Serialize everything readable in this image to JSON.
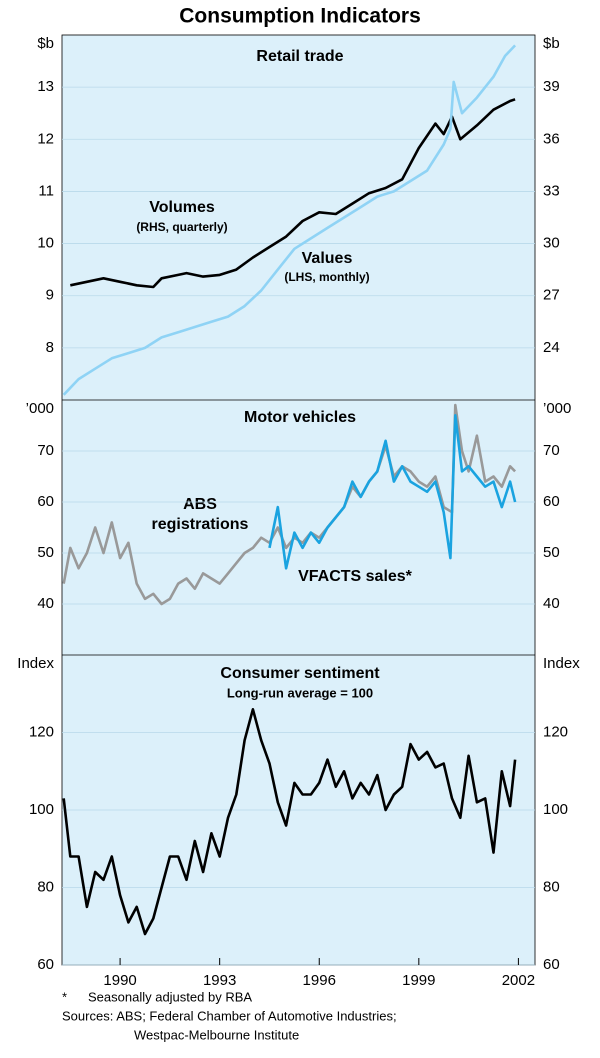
{
  "title": "Consumption Indicators",
  "notes": [
    "*",
    "Seasonally adjusted by RBA",
    "Sources: ABS; Federal Chamber of Automotive Industries;",
    "Westpac-Melbourne Institute"
  ],
  "chart_data": [
    {
      "type": "line",
      "title": "Retail trade",
      "y_unit": "$b",
      "y2_unit": "$b",
      "xlim": [
        1988.25,
        2002.5
      ],
      "ylim": [
        7,
        14
      ],
      "yticks": [
        8,
        9,
        10,
        11,
        12,
        13
      ],
      "y2lim": [
        21,
        42
      ],
      "y2ticks": [
        24,
        27,
        30,
        33,
        36,
        39
      ],
      "grid": true,
      "annotations": [
        "(RHS, quarterly)",
        "(LHS, monthly)"
      ],
      "series": [
        {
          "name": "Volumes",
          "color": "#000000",
          "axis": "y2",
          "x": [
            1988.5,
            1989,
            1989.5,
            1990,
            1990.5,
            1991,
            1991.25,
            1991.75,
            1992,
            1992.5,
            1993,
            1993.5,
            1994,
            1994.5,
            1995,
            1995.5,
            1996,
            1996.5,
            1997,
            1997.5,
            1998,
            1998.5,
            1999,
            1999.5,
            1999.75,
            2000,
            2000.25,
            2000.75,
            2001.25,
            2001.75,
            2001.9
          ],
          "values": [
            27.6,
            27.8,
            28.0,
            27.8,
            27.6,
            27.5,
            28.0,
            28.2,
            28.3,
            28.1,
            28.2,
            28.5,
            29.2,
            29.8,
            30.4,
            31.3,
            31.8,
            31.7,
            32.3,
            32.9,
            33.2,
            33.7,
            35.5,
            36.9,
            36.3,
            37.3,
            36.0,
            36.8,
            37.7,
            38.2,
            38.3
          ]
        },
        {
          "name": "Values",
          "color": "#8fd3f5",
          "axis": "y",
          "x": [
            1988.3,
            1988.75,
            1989.25,
            1989.75,
            1990.25,
            1990.75,
            1991.25,
            1991.75,
            1992.25,
            1992.75,
            1993.25,
            1993.75,
            1994.25,
            1994.75,
            1995.25,
            1995.75,
            1996.25,
            1996.75,
            1997.25,
            1997.75,
            1998.25,
            1998.75,
            1999.25,
            1999.75,
            1999.95,
            2000.05,
            2000.3,
            2000.75,
            2001.25,
            2001.6,
            2001.9
          ],
          "values": [
            7.1,
            7.4,
            7.6,
            7.8,
            7.9,
            8.0,
            8.2,
            8.3,
            8.4,
            8.5,
            8.6,
            8.8,
            9.1,
            9.5,
            9.9,
            10.1,
            10.3,
            10.5,
            10.7,
            10.9,
            11.0,
            11.2,
            11.4,
            11.9,
            12.2,
            13.1,
            12.5,
            12.8,
            13.2,
            13.6,
            13.8
          ]
        }
      ]
    },
    {
      "type": "line",
      "title": "Motor vehicles",
      "y_unit": "’000",
      "y2_unit": "’000",
      "xlim": [
        1988.25,
        2002.5
      ],
      "ylim": [
        30,
        80
      ],
      "yticks": [
        40,
        50,
        60,
        70
      ],
      "y2lim": [
        30,
        80
      ],
      "y2ticks": [
        40,
        50,
        60,
        70
      ],
      "grid": true,
      "series": [
        {
          "name": "ABS registrations",
          "color": "#999999",
          "axis": "y",
          "x": [
            1988.3,
            1988.5,
            1988.75,
            1989,
            1989.25,
            1989.5,
            1989.75,
            1990,
            1990.25,
            1990.5,
            1990.75,
            1991,
            1991.25,
            1991.5,
            1991.75,
            1992,
            1992.25,
            1992.5,
            1992.75,
            1993,
            1993.25,
            1993.5,
            1993.75,
            1994,
            1994.25,
            1994.5,
            1994.75,
            1995,
            1995.25,
            1995.5,
            1995.75,
            1996,
            1996.25,
            1996.5,
            1996.75,
            1997,
            1997.25,
            1997.5,
            1997.75,
            1998,
            1998.25,
            1998.5,
            1998.75,
            1999,
            1999.25,
            1999.5,
            1999.75,
            2000,
            2000.1,
            2000.3,
            2000.5,
            2000.75,
            2001,
            2001.25,
            2001.5,
            2001.75,
            2001.9
          ],
          "values": [
            44,
            51,
            47,
            50,
            55,
            50,
            56,
            49,
            52,
            44,
            41,
            42,
            40,
            41,
            44,
            45,
            43,
            46,
            45,
            44,
            46,
            48,
            50,
            51,
            53,
            52,
            55,
            51,
            53,
            52,
            54,
            53,
            55,
            57,
            59,
            63,
            61,
            64,
            66,
            71,
            65,
            67,
            66,
            64,
            63,
            65,
            59,
            58,
            79,
            70,
            66,
            73,
            64,
            65,
            63,
            67,
            66
          ]
        },
        {
          "name": "VFACTS sales*",
          "color": "#1aa3e0",
          "axis": "y",
          "x": [
            1994.5,
            1994.75,
            1995,
            1995.25,
            1995.5,
            1995.75,
            1996,
            1996.25,
            1996.5,
            1996.75,
            1997,
            1997.25,
            1997.5,
            1997.75,
            1998,
            1998.25,
            1998.5,
            1998.75,
            1999,
            1999.25,
            1999.5,
            1999.75,
            1999.95,
            2000.1,
            2000.3,
            2000.5,
            2000.75,
            2001,
            2001.25,
            2001.5,
            2001.75,
            2001.9
          ],
          "values": [
            51,
            59,
            47,
            54,
            51,
            54,
            52,
            55,
            57,
            59,
            64,
            61,
            64,
            66,
            72,
            64,
            67,
            64,
            63,
            62,
            64,
            58,
            49,
            77,
            66,
            67,
            65,
            63,
            64,
            59,
            64,
            60
          ]
        }
      ]
    },
    {
      "type": "line",
      "title": "Consumer sentiment",
      "subtitle": "Long-run average = 100",
      "y_unit": "Index",
      "y2_unit": "Index",
      "xlim": [
        1988.25,
        2002.5
      ],
      "xticks": [
        1990,
        1993,
        1996,
        1999,
        2002
      ],
      "ylim": [
        60,
        140
      ],
      "yticks": [
        60,
        80,
        100,
        120
      ],
      "y2lim": [
        60,
        140
      ],
      "y2ticks": [
        60,
        80,
        100,
        120
      ],
      "grid": true,
      "series": [
        {
          "name": "Consumer sentiment",
          "color": "#000000",
          "axis": "y",
          "x": [
            1988.3,
            1988.5,
            1988.75,
            1989,
            1989.25,
            1989.5,
            1989.75,
            1990,
            1990.25,
            1990.5,
            1990.75,
            1991,
            1991.25,
            1991.5,
            1991.75,
            1992,
            1992.25,
            1992.5,
            1992.75,
            1993,
            1993.25,
            1993.5,
            1993.75,
            1994,
            1994.25,
            1994.5,
            1994.75,
            1995,
            1995.25,
            1995.5,
            1995.75,
            1996,
            1996.25,
            1996.5,
            1996.75,
            1997,
            1997.25,
            1997.5,
            1997.75,
            1998,
            1998.25,
            1998.5,
            1998.75,
            1999,
            1999.25,
            1999.5,
            1999.75,
            2000,
            2000.25,
            2000.5,
            2000.75,
            2001,
            2001.25,
            2001.5,
            2001.75,
            2001.9
          ],
          "values": [
            103,
            88,
            88,
            75,
            84,
            82,
            88,
            78,
            71,
            75,
            68,
            72,
            80,
            88,
            88,
            82,
            92,
            84,
            94,
            88,
            98,
            104,
            118,
            126,
            118,
            112,
            102,
            96,
            107,
            104,
            104,
            107,
            113,
            106,
            110,
            103,
            107,
            104,
            109,
            100,
            104,
            106,
            117,
            113,
            115,
            111,
            112,
            103,
            98,
            114,
            102,
            103,
            89,
            110,
            101,
            113
          ]
        }
      ]
    }
  ]
}
